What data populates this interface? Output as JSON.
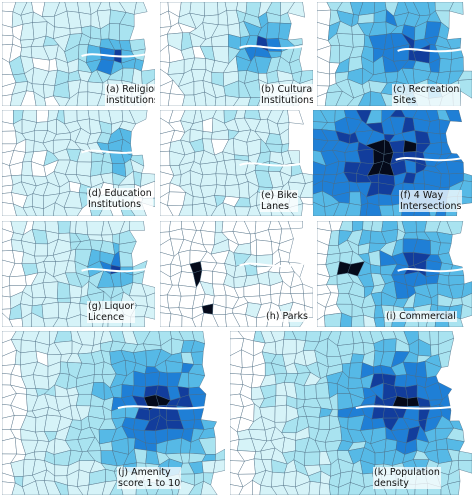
{
  "panels": [
    {
      "id": "a",
      "label_lines": [
        "(a) Religious",
        "institutions"
      ]
    },
    {
      "id": "b",
      "label_lines": [
        "(b) Cultural",
        "Institutions"
      ]
    },
    {
      "id": "c",
      "label_lines": [
        "(c) Recreation",
        "Sites"
      ]
    },
    {
      "id": "d",
      "label_lines": [
        "(d) Education",
        "Institutions"
      ]
    },
    {
      "id": "e",
      "label_lines": [
        "(e) Bike",
        "Lanes"
      ]
    },
    {
      "id": "f",
      "label_lines": [
        "(f) 4 Way",
        "Intersections"
      ]
    },
    {
      "id": "g",
      "label_lines": [
        "(g) Liquor",
        "Licence"
      ]
    },
    {
      "id": "h",
      "label_lines": [
        "(h) Parks"
      ]
    },
    {
      "id": "i",
      "label_lines": [
        "(i) Commercial"
      ]
    },
    {
      "id": "j",
      "label_lines": [
        "(j) Amenity",
        "score 1 to 10"
      ]
    },
    {
      "id": "k",
      "label_lines": [
        "(k) Population",
        "density"
      ]
    }
  ],
  "colors": {
    "very_light": "#d6f3f8",
    "light": "#a9e3f0",
    "medium": "#56b9e6",
    "strong": "#1f7fd6",
    "dark": "#123d9c",
    "black": "#050a1a",
    "outline": "#4a6a80",
    "background": "#ffffff"
  }
}
